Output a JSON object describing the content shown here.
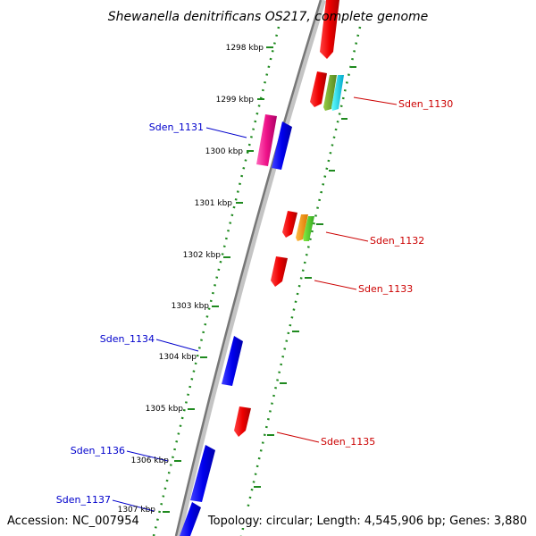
{
  "title": "Shewanella denitrificans OS217, complete genome",
  "accession": "Accession: NC_007954",
  "topology": "Topology: circular; Length: 4,545,906 bp; Genes: 3,880",
  "colors": {
    "backbone": "#888888",
    "ticks": "#1f8a1f",
    "forward_label": "#cc0000",
    "reverse_label": "#0000cc"
  },
  "kbp_labels": [
    "1298 kbp",
    "1299 kbp",
    "1300 kbp",
    "1301 kbp",
    "1302 kbp",
    "1303 kbp",
    "1304 kbp",
    "1305 kbp",
    "1306 kbp",
    "1307 kbp"
  ],
  "gene_labels": [
    {
      "name": "Sden_1130",
      "strand": "forward"
    },
    {
      "name": "Sden_1131",
      "strand": "reverse"
    },
    {
      "name": "Sden_1132",
      "strand": "forward"
    },
    {
      "name": "Sden_1133",
      "strand": "forward"
    },
    {
      "name": "Sden_1134",
      "strand": "reverse"
    },
    {
      "name": "Sden_1135",
      "strand": "forward"
    },
    {
      "name": "Sden_1136",
      "strand": "reverse"
    },
    {
      "name": "Sden_1137",
      "strand": "reverse"
    }
  ]
}
